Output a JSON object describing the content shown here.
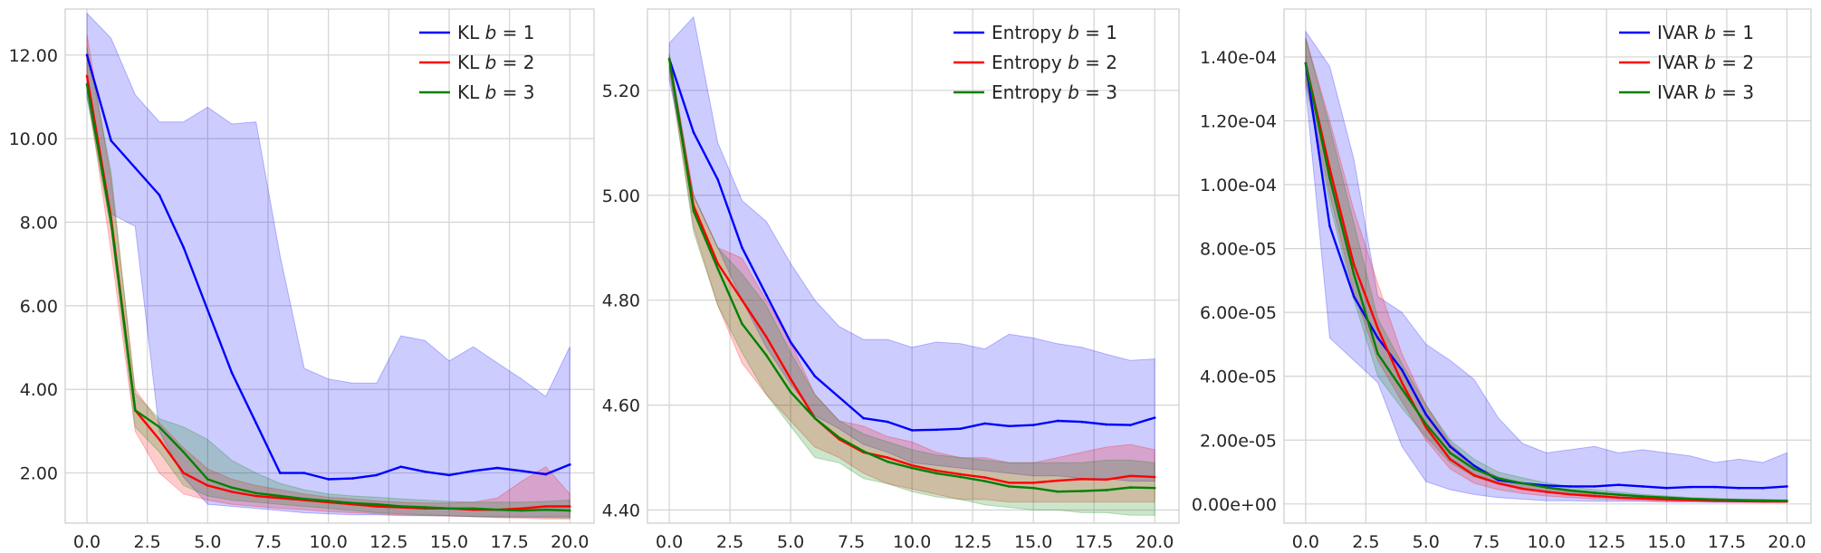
{
  "chart_data": [
    {
      "type": "line",
      "title": "",
      "xlabel": "",
      "ylabel": "",
      "xlim": [
        -0.9,
        21.0
      ],
      "ylim": [
        0.8,
        13.1
      ],
      "x_ticks": [
        0,
        2.5,
        5,
        7.5,
        10,
        12.5,
        15,
        17.5,
        20
      ],
      "x_tick_labels": [
        "0.0",
        "2.5",
        "5.0",
        "7.5",
        "10.0",
        "12.5",
        "15.0",
        "17.5",
        "20.0"
      ],
      "y_ticks": [
        2,
        4,
        6,
        8,
        10,
        12
      ],
      "y_tick_labels": [
        "2.00",
        "4.00",
        "6.00",
        "8.00",
        "10.00",
        "12.00"
      ],
      "grid": true,
      "legend_position": "top-right",
      "x": [
        0,
        1,
        2,
        3,
        4,
        5,
        6,
        7,
        8,
        9,
        10,
        11,
        12,
        13,
        14,
        15,
        16,
        17,
        18,
        19,
        20
      ],
      "series": [
        {
          "name": "KL b = 1",
          "label_prefix": "KL",
          "b_value": "1",
          "color": "#0000ff",
          "values": [
            12.0,
            9.95,
            9.3,
            8.65,
            7.4,
            5.9,
            4.4,
            3.2,
            2.0,
            2.0,
            1.85,
            1.87,
            1.95,
            2.15,
            2.03,
            1.95,
            2.05,
            2.12,
            2.05,
            1.97,
            2.2
          ],
          "band_upper": [
            13.0,
            12.4,
            11.05,
            10.4,
            10.4,
            10.75,
            10.35,
            10.4,
            7.2,
            4.5,
            4.25,
            4.15,
            4.15,
            5.28,
            5.17,
            4.68,
            5.02,
            4.63,
            4.25,
            3.83,
            5.02
          ],
          "band_lower": [
            11.0,
            8.2,
            7.9,
            3.0,
            1.9,
            1.25,
            1.2,
            1.15,
            1.1,
            1.05,
            1.02,
            1.0,
            1.0,
            0.98,
            0.98,
            0.97,
            0.96,
            0.95,
            0.95,
            0.95,
            0.95
          ]
        },
        {
          "name": "KL b = 2",
          "label_prefix": "KL",
          "b_value": "2",
          "color": "#ff0000",
          "values": [
            11.5,
            8.1,
            3.5,
            2.8,
            2.0,
            1.7,
            1.55,
            1.45,
            1.4,
            1.35,
            1.3,
            1.25,
            1.2,
            1.18,
            1.15,
            1.15,
            1.12,
            1.12,
            1.15,
            1.2,
            1.2
          ],
          "band_upper": [
            12.5,
            9.0,
            4.0,
            3.2,
            2.6,
            2.1,
            1.85,
            1.7,
            1.6,
            1.5,
            1.42,
            1.38,
            1.33,
            1.3,
            1.28,
            1.28,
            1.3,
            1.4,
            1.8,
            2.15,
            1.5
          ],
          "band_lower": [
            11.2,
            7.3,
            3.0,
            2.0,
            1.5,
            1.35,
            1.25,
            1.2,
            1.15,
            1.12,
            1.08,
            1.05,
            1.02,
            1.0,
            0.98,
            0.97,
            0.95,
            0.93,
            0.92,
            0.9,
            0.9
          ]
        },
        {
          "name": "KL b = 3",
          "label_prefix": "KL",
          "b_value": "3",
          "color": "#008000",
          "values": [
            11.3,
            8.0,
            3.5,
            3.1,
            2.5,
            1.85,
            1.65,
            1.52,
            1.45,
            1.38,
            1.33,
            1.28,
            1.25,
            1.2,
            1.18,
            1.15,
            1.15,
            1.12,
            1.1,
            1.12,
            1.1
          ],
          "band_upper": [
            12.2,
            9.2,
            3.9,
            3.3,
            3.1,
            2.8,
            2.3,
            2.0,
            1.75,
            1.6,
            1.5,
            1.45,
            1.42,
            1.38,
            1.35,
            1.32,
            1.3,
            1.3,
            1.3,
            1.32,
            1.35
          ],
          "band_lower": [
            11.0,
            7.8,
            3.1,
            2.5,
            1.7,
            1.45,
            1.35,
            1.3,
            1.25,
            1.2,
            1.15,
            1.1,
            1.05,
            1.02,
            1.0,
            0.98,
            0.96,
            0.95,
            0.94,
            0.93,
            0.92
          ]
        }
      ]
    },
    {
      "type": "line",
      "title": "",
      "xlabel": "",
      "ylabel": "",
      "xlim": [
        -0.9,
        21.0
      ],
      "ylim": [
        4.375,
        5.355
      ],
      "x_ticks": [
        0,
        2.5,
        5,
        7.5,
        10,
        12.5,
        15,
        17.5,
        20
      ],
      "x_tick_labels": [
        "0.0",
        "2.5",
        "5.0",
        "7.5",
        "10.0",
        "12.5",
        "15.0",
        "17.5",
        "20.0"
      ],
      "y_ticks": [
        4.4,
        4.6,
        4.8,
        5.0,
        5.2
      ],
      "y_tick_labels": [
        "4.40",
        "4.60",
        "4.80",
        "5.00",
        "5.20"
      ],
      "grid": true,
      "legend_position": "top-right",
      "x": [
        0,
        1,
        2,
        3,
        4,
        5,
        6,
        7,
        8,
        9,
        10,
        11,
        12,
        13,
        14,
        15,
        16,
        17,
        18,
        19,
        20
      ],
      "series": [
        {
          "name": "Entropy b = 1",
          "label_prefix": "Entropy",
          "b_value": "1",
          "color": "#0000ff",
          "values": [
            5.26,
            5.12,
            5.03,
            4.9,
            4.81,
            4.72,
            4.655,
            4.615,
            4.575,
            4.568,
            4.552,
            4.553,
            4.555,
            4.565,
            4.56,
            4.562,
            4.57,
            4.568,
            4.563,
            4.562,
            4.576
          ],
          "band_upper": [
            5.29,
            5.34,
            5.1,
            4.99,
            4.95,
            4.87,
            4.8,
            4.75,
            4.725,
            4.725,
            4.71,
            4.72,
            4.717,
            4.707,
            4.735,
            4.728,
            4.717,
            4.71,
            4.697,
            4.685,
            4.688
          ],
          "band_lower": [
            5.22,
            5.0,
            4.9,
            4.8,
            4.71,
            4.64,
            4.58,
            4.555,
            4.525,
            4.51,
            4.49,
            4.485,
            4.48,
            4.475,
            4.47,
            4.465,
            4.465,
            4.46,
            4.46,
            4.455,
            4.455
          ]
        },
        {
          "name": "Entropy b = 2",
          "label_prefix": "Entropy",
          "b_value": "2",
          "color": "#ff0000",
          "values": [
            5.26,
            4.98,
            4.87,
            4.8,
            4.73,
            4.65,
            4.575,
            4.535,
            4.51,
            4.5,
            4.485,
            4.475,
            4.468,
            4.462,
            4.452,
            4.452,
            4.456,
            4.459,
            4.458,
            4.465,
            4.463
          ],
          "band_upper": [
            5.27,
            5.0,
            4.9,
            4.88,
            4.8,
            4.72,
            4.62,
            4.57,
            4.56,
            4.54,
            4.53,
            4.51,
            4.5,
            4.5,
            4.49,
            4.49,
            4.5,
            4.51,
            4.52,
            4.525,
            4.515
          ],
          "band_lower": [
            5.24,
            4.94,
            4.79,
            4.68,
            4.62,
            4.57,
            4.52,
            4.5,
            4.47,
            4.45,
            4.44,
            4.43,
            4.42,
            4.42,
            4.415,
            4.415,
            4.415,
            4.415,
            4.415,
            4.415,
            4.415
          ]
        },
        {
          "name": "Entropy b = 3",
          "label_prefix": "Entropy",
          "b_value": "3",
          "color": "#008000",
          "values": [
            5.26,
            4.97,
            4.86,
            4.755,
            4.695,
            4.625,
            4.575,
            4.538,
            4.512,
            4.492,
            4.48,
            4.47,
            4.463,
            4.455,
            4.445,
            4.442,
            4.435,
            4.436,
            4.438,
            4.443,
            4.442
          ],
          "band_upper": [
            5.27,
            5.0,
            4.9,
            4.85,
            4.79,
            4.7,
            4.62,
            4.57,
            4.545,
            4.53,
            4.515,
            4.505,
            4.5,
            4.495,
            4.49,
            4.49,
            4.49,
            4.49,
            4.495,
            4.495,
            4.49
          ],
          "band_lower": [
            5.24,
            4.93,
            4.79,
            4.7,
            4.62,
            4.56,
            4.5,
            4.49,
            4.46,
            4.45,
            4.435,
            4.425,
            4.42,
            4.41,
            4.405,
            4.4,
            4.4,
            4.395,
            4.395,
            4.39,
            4.39
          ]
        }
      ]
    },
    {
      "type": "line",
      "title": "",
      "xlabel": "",
      "ylabel": "",
      "xlim": [
        -0.9,
        21.0
      ],
      "ylim": [
        -6e-06,
        0.000155
      ],
      "x_ticks": [
        0,
        2.5,
        5,
        7.5,
        10,
        12.5,
        15,
        17.5,
        20
      ],
      "x_tick_labels": [
        "0.0",
        "2.5",
        "5.0",
        "7.5",
        "10.0",
        "12.5",
        "15.0",
        "17.5",
        "20.0"
      ],
      "y_ticks": [
        0,
        2e-05,
        4e-05,
        6e-05,
        8e-05,
        0.0001,
        0.00012,
        0.00014
      ],
      "y_tick_labels": [
        "0.00e+00",
        "2.00e-05",
        "4.00e-05",
        "6.00e-05",
        "8.00e-05",
        "1.00e-04",
        "1.20e-04",
        "1.40e-04"
      ],
      "grid": true,
      "legend_position": "top-right",
      "x": [
        0,
        1,
        2,
        3,
        4,
        5,
        6,
        7,
        8,
        9,
        10,
        11,
        12,
        13,
        14,
        15,
        16,
        17,
        18,
        19,
        20
      ],
      "series": [
        {
          "name": "IVAR b = 1",
          "label_prefix": "IVAR",
          "b_value": "1",
          "color": "#0000ff",
          "values": [
            0.000138,
            8.7e-05,
            6.5e-05,
            5.2e-05,
            4.2e-05,
            2.8e-05,
            1.8e-05,
            1.2e-05,
            7.5e-06,
            6.5e-06,
            5.8e-06,
            5.5e-06,
            5.5e-06,
            6e-06,
            5.5e-06,
            5e-06,
            5.3e-06,
            5.3e-06,
            5e-06,
            5e-06,
            5.5e-06
          ],
          "band_upper": [
            0.000148,
            0.000137,
            0.000108,
            6.5e-05,
            6e-05,
            5e-05,
            4.5e-05,
            3.9e-05,
            2.7e-05,
            1.9e-05,
            1.6e-05,
            1.7e-05,
            1.8e-05,
            1.6e-05,
            1.7e-05,
            1.6e-05,
            1.5e-05,
            1.3e-05,
            1.4e-05,
            1.3e-05,
            1.6e-05
          ],
          "band_lower": [
            0.00013,
            5.2e-05,
            4.5e-05,
            3.8e-05,
            1.8e-05,
            7e-06,
            4.5e-06,
            3e-06,
            2e-06,
            1.5e-06,
            1e-06,
            1e-06,
            8e-07,
            8e-07,
            8e-07,
            6e-07,
            6e-07,
            5e-07,
            5e-07,
            5e-07,
            5e-07
          ]
        },
        {
          "name": "IVAR b = 2",
          "label_prefix": "IVAR",
          "b_value": "2",
          "color": "#ff0000",
          "values": [
            0.000138,
            0.000105,
            7.5e-05,
            5.5e-05,
            3.8e-05,
            2.4e-05,
            1.4e-05,
            9e-06,
            6.5e-06,
            4.8e-06,
            3.8e-06,
            3e-06,
            2.5e-06,
            2e-06,
            1.7e-06,
            1.4e-06,
            1.2e-06,
            1e-06,
            9e-07,
            8e-07,
            8e-07
          ],
          "band_upper": [
            0.000146,
            0.00012,
            9.2e-05,
            6.9e-05,
            4.7e-05,
            3.1e-05,
            1.9e-05,
            1.2e-05,
            8.5e-06,
            6.5e-06,
            5e-06,
            4e-06,
            3.3e-06,
            2.7e-06,
            2.2e-06,
            1.8e-06,
            1.5e-06,
            1.3e-06,
            1.2e-06,
            1.1e-06,
            1e-06
          ],
          "band_lower": [
            0.000132,
            9.7e-05,
            6.6e-05,
            4.5e-05,
            3.2e-05,
            2e-05,
            1.1e-05,
            6.5e-06,
            4.5e-06,
            3.3e-06,
            2.5e-06,
            2e-06,
            1.6e-06,
            1.3e-06,
            1.1e-06,
            9e-07,
            8e-07,
            7e-07,
            6e-07,
            5e-07,
            5e-07
          ]
        },
        {
          "name": "IVAR b = 3",
          "label_prefix": "IVAR",
          "b_value": "3",
          "color": "#008000",
          "values": [
            0.000138,
            0.000102,
            7.2e-05,
            4.7e-05,
            3.6e-05,
            2.5e-05,
            1.6e-05,
            1.1e-05,
            8e-06,
            6.5e-06,
            5.2e-06,
            4.2e-06,
            3.5e-06,
            2.9e-06,
            2.4e-06,
            2e-06,
            1.6e-06,
            1.4e-06,
            1.2e-06,
            1.1e-06,
            1e-06
          ],
          "band_upper": [
            0.000146,
            0.000118,
            8.8e-05,
            5.8e-05,
            4.4e-05,
            3.1e-05,
            2e-05,
            1.4e-05,
            1e-05,
            8.2e-06,
            6.6e-06,
            5.4e-06,
            4.5e-06,
            3.7e-06,
            3e-06,
            2.5e-06,
            2e-06,
            1.7e-06,
            1.5e-06,
            1.4e-06,
            1.3e-06
          ],
          "band_lower": [
            0.000132,
            9.4e-05,
            6.4e-05,
            4e-05,
            3e-05,
            2.1e-05,
            1.3e-05,
            8.5e-06,
            6.2e-06,
            4.9e-06,
            3.9e-06,
            3.2e-06,
            2.6e-06,
            2.1e-06,
            1.7e-06,
            1.4e-06,
            1.2e-06,
            1e-06,
            9e-07,
            8e-07,
            8e-07
          ]
        }
      ]
    }
  ]
}
